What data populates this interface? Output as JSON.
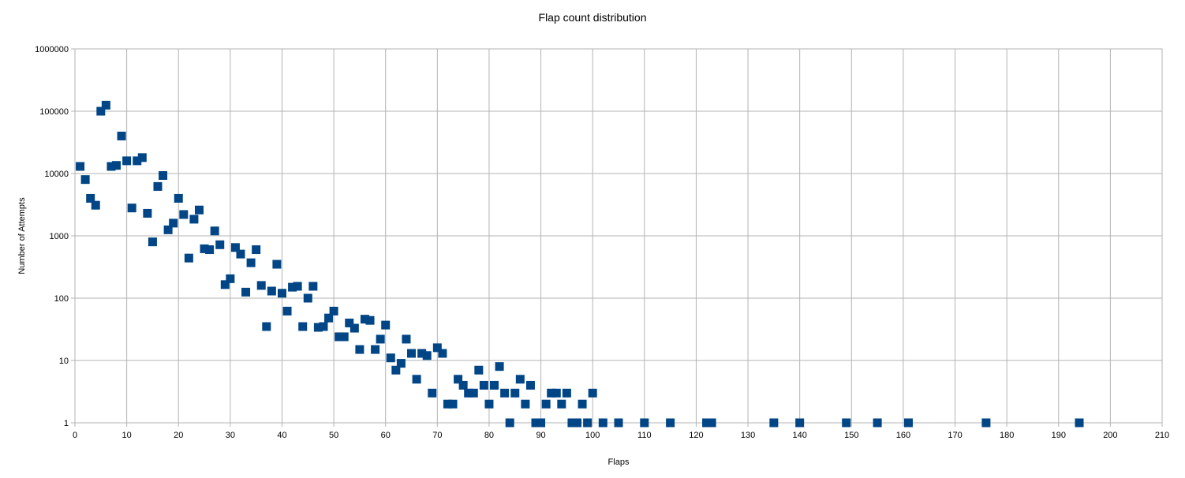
{
  "chart_data": {
    "type": "scatter",
    "title": "Flap count distribution",
    "xlabel": "Flaps",
    "ylabel": "Number of Attempts",
    "xlim": [
      0,
      210
    ],
    "ylim": [
      1,
      1000000
    ],
    "y_scale": "log",
    "grid": true,
    "legend": "none",
    "x_ticks": [
      "0",
      "10",
      "20",
      "30",
      "40",
      "50",
      "60",
      "70",
      "80",
      "90",
      "100",
      "110",
      "120",
      "130",
      "140",
      "150",
      "160",
      "170",
      "180",
      "190",
      "200",
      "210"
    ],
    "y_ticks": [
      "1",
      "10",
      "100",
      "1000",
      "10000",
      "100000",
      "1000000"
    ],
    "marker_color": "#004586",
    "points": [
      [
        1,
        13000
      ],
      [
        2,
        8000
      ],
      [
        3,
        4000
      ],
      [
        4,
        3100
      ],
      [
        5,
        100000
      ],
      [
        6,
        125000
      ],
      [
        7,
        13000
      ],
      [
        8,
        13500
      ],
      [
        9,
        40000
      ],
      [
        10,
        16000
      ],
      [
        11,
        2800
      ],
      [
        12,
        16000
      ],
      [
        13,
        18000
      ],
      [
        14,
        2300
      ],
      [
        15,
        800
      ],
      [
        16,
        6200
      ],
      [
        17,
        9300
      ],
      [
        18,
        1250
      ],
      [
        19,
        1600
      ],
      [
        20,
        4000
      ],
      [
        21,
        2200
      ],
      [
        22,
        440
      ],
      [
        23,
        1850
      ],
      [
        24,
        2600
      ],
      [
        25,
        620
      ],
      [
        26,
        600
      ],
      [
        27,
        1200
      ],
      [
        28,
        720
      ],
      [
        29,
        165
      ],
      [
        30,
        205
      ],
      [
        31,
        650
      ],
      [
        32,
        510
      ],
      [
        33,
        125
      ],
      [
        34,
        370
      ],
      [
        35,
        600
      ],
      [
        36,
        160
      ],
      [
        37,
        35
      ],
      [
        38,
        130
      ],
      [
        39,
        350
      ],
      [
        40,
        120
      ],
      [
        41,
        62
      ],
      [
        42,
        150
      ],
      [
        43,
        155
      ],
      [
        44,
        35
      ],
      [
        45,
        100
      ],
      [
        46,
        155
      ],
      [
        47,
        34
      ],
      [
        48,
        35
      ],
      [
        49,
        48
      ],
      [
        50,
        62
      ],
      [
        51,
        24
      ],
      [
        52,
        24
      ],
      [
        53,
        40
      ],
      [
        54,
        33
      ],
      [
        55,
        15
      ],
      [
        56,
        46
      ],
      [
        57,
        44
      ],
      [
        58,
        15
      ],
      [
        59,
        22
      ],
      [
        60,
        37
      ],
      [
        61,
        11
      ],
      [
        62,
        7
      ],
      [
        63,
        9
      ],
      [
        64,
        22
      ],
      [
        65,
        13
      ],
      [
        66,
        5
      ],
      [
        67,
        13
      ],
      [
        68,
        12
      ],
      [
        69,
        3
      ],
      [
        70,
        16
      ],
      [
        71,
        13
      ],
      [
        72,
        2
      ],
      [
        73,
        2
      ],
      [
        74,
        5
      ],
      [
        75,
        4
      ],
      [
        76,
        3
      ],
      [
        77,
        3
      ],
      [
        78,
        7
      ],
      [
        79,
        4
      ],
      [
        80,
        2
      ],
      [
        81,
        4
      ],
      [
        82,
        8
      ],
      [
        83,
        3
      ],
      [
        84,
        1
      ],
      [
        85,
        3
      ],
      [
        86,
        5
      ],
      [
        87,
        2
      ],
      [
        88,
        4
      ],
      [
        89,
        1
      ],
      [
        90,
        1
      ],
      [
        91,
        2
      ],
      [
        92,
        3
      ],
      [
        93,
        3
      ],
      [
        94,
        2
      ],
      [
        95,
        3
      ],
      [
        96,
        1
      ],
      [
        97,
        1
      ],
      [
        98,
        2
      ],
      [
        99,
        1
      ],
      [
        100,
        3
      ],
      [
        102,
        1
      ],
      [
        105,
        1
      ],
      [
        110,
        1
      ],
      [
        115,
        1
      ],
      [
        122,
        1
      ],
      [
        123,
        1
      ],
      [
        135,
        1
      ],
      [
        140,
        1
      ],
      [
        149,
        1
      ],
      [
        155,
        1
      ],
      [
        161,
        1
      ],
      [
        176,
        1
      ],
      [
        194,
        1
      ]
    ]
  }
}
